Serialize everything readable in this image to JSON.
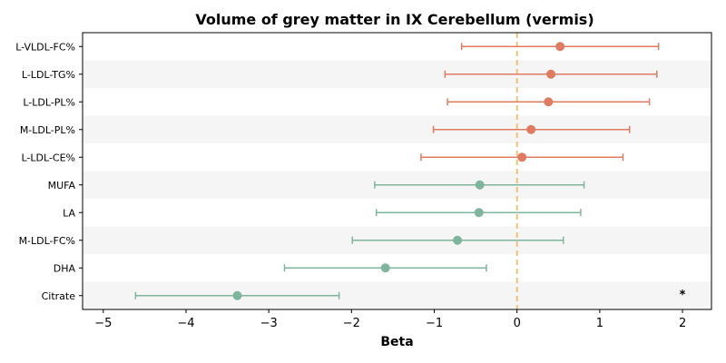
{
  "chart_data": {
    "type": "forest",
    "title": "Volume of grey matter in IX Cerebellum (vermis)",
    "xlabel": "Beta",
    "ylabel": "",
    "xlim": [
      -5.25,
      2.35
    ],
    "xticks": [
      -5,
      -4,
      -3,
      -2,
      -1,
      0,
      1,
      2
    ],
    "xtick_labels": [
      "−5",
      "−4",
      "−3",
      "−2",
      "−1",
      "0",
      "1",
      "2"
    ],
    "reference_line": 0,
    "colors": {
      "positive": "#e07b62",
      "negative": "#7fb59c",
      "reference": "#f2c27a",
      "band": "#f5f5f5"
    },
    "rows": [
      {
        "label": "L-VLDL-FC%",
        "beta": 0.52,
        "lo": -0.67,
        "hi": 1.71,
        "significant": false
      },
      {
        "label": "L-LDL-TG%",
        "beta": 0.41,
        "lo": -0.87,
        "hi": 1.69,
        "significant": false
      },
      {
        "label": "L-LDL-PL%",
        "beta": 0.38,
        "lo": -0.84,
        "hi": 1.6,
        "significant": false
      },
      {
        "label": "M-LDL-PL%",
        "beta": 0.17,
        "lo": -1.01,
        "hi": 1.36,
        "significant": false
      },
      {
        "label": "L-LDL-CE%",
        "beta": 0.06,
        "lo": -1.16,
        "hi": 1.28,
        "significant": false
      },
      {
        "label": "MUFA",
        "beta": -0.45,
        "lo": -1.72,
        "hi": 0.81,
        "significant": false
      },
      {
        "label": "LA",
        "beta": -0.46,
        "lo": -1.7,
        "hi": 0.77,
        "significant": false
      },
      {
        "label": "M-LDL-FC%",
        "beta": -0.72,
        "lo": -1.99,
        "hi": 0.56,
        "significant": false
      },
      {
        "label": "DHA",
        "beta": -1.59,
        "lo": -2.81,
        "hi": -0.37,
        "significant": false
      },
      {
        "label": "Citrate",
        "beta": -3.38,
        "lo": -4.61,
        "hi": -2.15,
        "significant": true
      }
    ],
    "significance_marker": "*",
    "banded_rows": true
  }
}
